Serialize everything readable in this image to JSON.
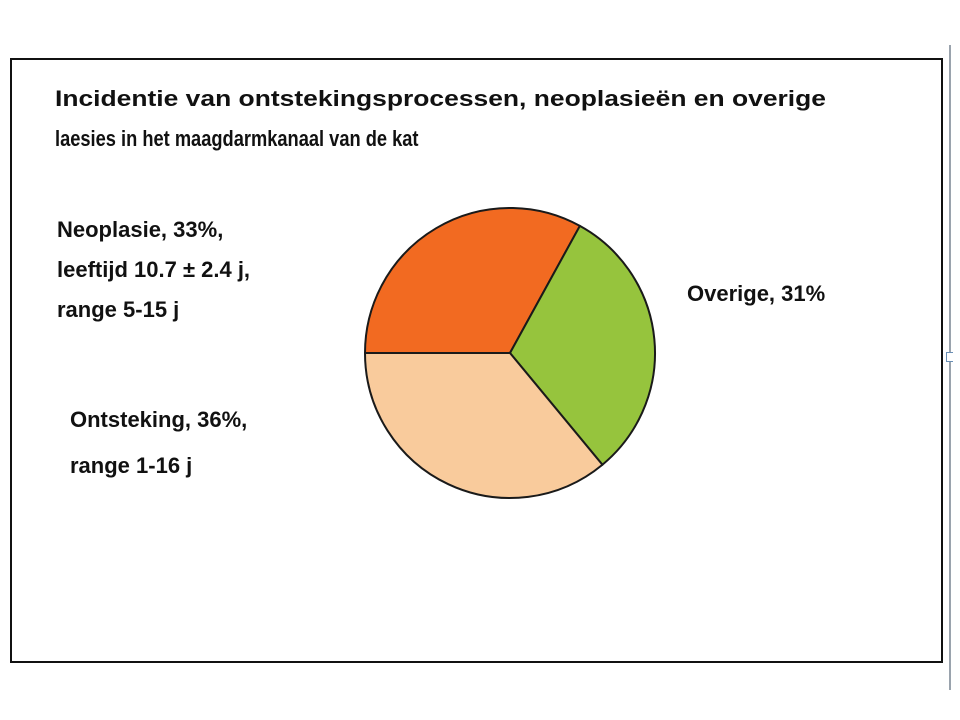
{
  "chart_data": {
    "type": "pie",
    "title": [
      "Incidentie van ontstekingsprocessen, neoplasieën en overige",
      "laesies in het maagdarmkanaal van de kat"
    ],
    "slices": [
      {
        "name": "Neoplasie",
        "value": 33,
        "color": "#f26a21",
        "label": [
          "Neoplasie, 33%,",
          "leeftijd 10.7 ± 2.4 j,",
          "range 5-15 j"
        ]
      },
      {
        "name": "Overige",
        "value": 31,
        "color": "#96c43d",
        "label": [
          "Overige, 31%"
        ]
      },
      {
        "name": "Ontsteking",
        "value": 36,
        "color": "#f9cb9c",
        "label": [
          "Ontsteking, 36%,",
          "range 1-16 j"
        ]
      }
    ],
    "start_angle_deg": 180,
    "direction": "clockwise",
    "legend": "none"
  }
}
